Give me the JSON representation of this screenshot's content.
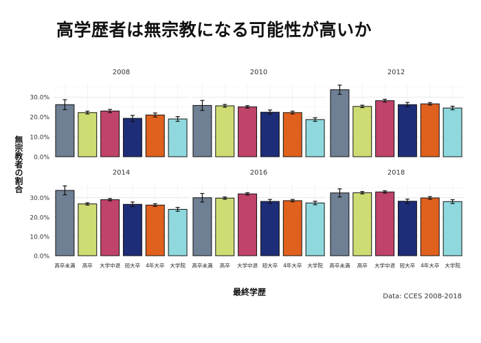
{
  "title": "高学歴者は無宗教になる可能性が高いか",
  "source": "Data: CCES 2008-2018",
  "chart_data": {
    "type": "bar",
    "xlabel": "最終学歴",
    "ylabel": "無宗教者の割合",
    "categories": [
      "高卒未満",
      "高卒",
      "大学中退",
      "短大卒",
      "4年大卒",
      "大学院"
    ],
    "yticks": [
      "0.0%",
      "10.0%",
      "20.0%",
      "30.0%"
    ],
    "ylim": [
      0,
      0.37
    ],
    "grid": true,
    "colors": [
      "#6f7f94",
      "#cfdc74",
      "#c0436a",
      "#1e2d77",
      "#e0601e",
      "#8fd9de"
    ],
    "facets": [
      {
        "label": "2008",
        "values": [
          0.262,
          0.222,
          0.23,
          0.193,
          0.21,
          0.19
        ],
        "errors": [
          0.025,
          0.007,
          0.008,
          0.015,
          0.01,
          0.012
        ]
      },
      {
        "label": "2010",
        "values": [
          0.258,
          0.256,
          0.251,
          0.224,
          0.222,
          0.187
        ],
        "errors": [
          0.025,
          0.007,
          0.006,
          0.011,
          0.007,
          0.009
        ]
      },
      {
        "label": "2012",
        "values": [
          0.337,
          0.253,
          0.282,
          0.262,
          0.266,
          0.245
        ],
        "errors": [
          0.023,
          0.006,
          0.007,
          0.011,
          0.006,
          0.009
        ]
      },
      {
        "label": "2014",
        "values": [
          0.338,
          0.268,
          0.29,
          0.266,
          0.262,
          0.24
        ],
        "errors": [
          0.023,
          0.006,
          0.006,
          0.012,
          0.007,
          0.01
        ]
      },
      {
        "label": "2016",
        "values": [
          0.3,
          0.298,
          0.32,
          0.281,
          0.285,
          0.273
        ],
        "errors": [
          0.022,
          0.006,
          0.006,
          0.01,
          0.006,
          0.009
        ]
      },
      {
        "label": "2018",
        "values": [
          0.325,
          0.326,
          0.33,
          0.282,
          0.299,
          0.28
        ],
        "errors": [
          0.021,
          0.006,
          0.006,
          0.011,
          0.007,
          0.01
        ]
      }
    ]
  }
}
